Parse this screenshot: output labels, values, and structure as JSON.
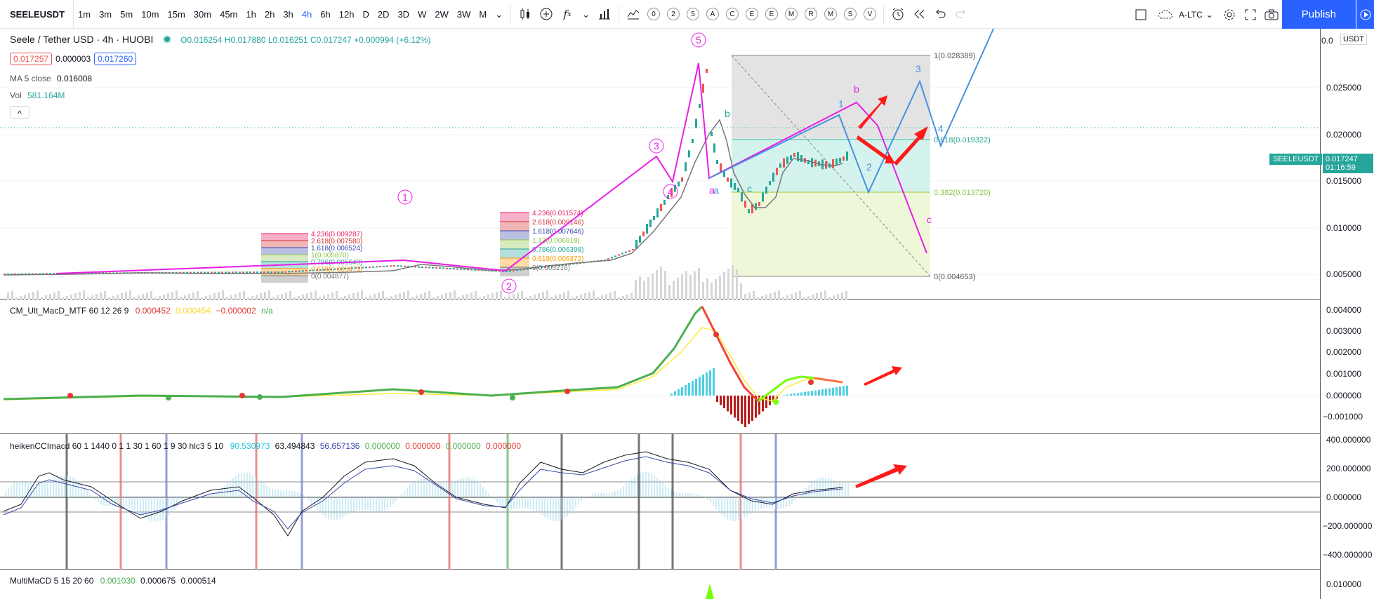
{
  "toolbar": {
    "symbol": "SEELEUSDT",
    "timeframes": [
      "1m",
      "3m",
      "5m",
      "10m",
      "15m",
      "30m",
      "45m",
      "1h",
      "2h",
      "3h",
      "4h",
      "6h",
      "12h",
      "D",
      "2D",
      "3D",
      "W",
      "2W",
      "3W",
      "M"
    ],
    "active_timeframe": "4h",
    "indicator_shortcuts": [
      "0",
      "2",
      "5",
      "A",
      "C",
      "E",
      "E",
      "M",
      "R",
      "M",
      "S",
      "V"
    ],
    "compare_label": "A-LTC",
    "publish_label": "Publish"
  },
  "legend": {
    "title": "Seele / Tether USD · 4h · HUOBI",
    "ohlc": {
      "o": "O0.016254",
      "h": "H0.017880",
      "l": "L0.016251",
      "c": "C0.017247",
      "chg": "+0.000994 (+6.12%)"
    },
    "bid": "0.017257",
    "spread": "0.000003",
    "ask": "0.017260",
    "ma_label": "MA 5 close",
    "ma_value": "0.016008",
    "vol_label": "Vol",
    "vol_value": "581.164M",
    "collapse": "^"
  },
  "price_axis": {
    "unit": "USDT",
    "labels": [
      "0.025000",
      "0.020000",
      "0.015000",
      "0.010000",
      "0.005000"
    ],
    "top_partial": "0.0",
    "price_tag": "SEELEUSDT",
    "price_value": "0.017247",
    "countdown": "01:16:59"
  },
  "fib_left": [
    "4.236(0.009287)",
    "2.618(0.007580)",
    "1.618(0.006524)",
    "1(0.005870)",
    "0.786(0.005649)",
    "0.618(0.005473)",
    "0(0.004877)"
  ],
  "fib_mid": [
    "4.236(0.011574)",
    "2.618(0.009146)",
    "1.618(0.007646)",
    "1.13(0.006918)",
    "0.786(0.006398)",
    "0.618(0.006372)",
    "0(0.005216)"
  ],
  "fib_right": {
    "top": "1(0.028389)",
    "f618": "0.618(0.019322)",
    "f382": "0.382(0.013720)",
    "bottom": "0(0.004653)"
  },
  "waves": {
    "impulse": [
      "1",
      "2",
      "3",
      "4",
      "5"
    ],
    "abc": [
      "a",
      "b",
      "c"
    ],
    "blue": [
      "1",
      "2",
      "3",
      "4",
      "b",
      "a",
      "c"
    ],
    "right_b": "b",
    "right_c": "c"
  },
  "macd": {
    "name": "CM_Ult_MacD_MTF 60 12 26 9",
    "v1": "0.000452",
    "v2": "0.000454",
    "v3": "−0.000002",
    "v4": "n/a",
    "axis": [
      "0.004000",
      "0.003000",
      "0.002000",
      "0.001000",
      "0.000000",
      "−0.001000"
    ]
  },
  "cci": {
    "name": "heikenCCImacd 60 1 1440 0 1 1 30 1 60 1 9 30 hlc3 5 10",
    "v1": "90.530973",
    "v2": "63.494843",
    "v3": "56.657136",
    "v4": "0.000000",
    "v5": "0.000000",
    "v6": "0.000000",
    "v7": "0.000000",
    "axis": [
      "400.000000",
      "200.000000",
      "0.000000",
      "−200.000000",
      "−400.000000"
    ]
  },
  "multi": {
    "name": "MultiMaCD 5 15 20 60",
    "v1": "0.001030",
    "v2": "0.000675",
    "v3": "0.000514",
    "axis": [
      "0.010000"
    ]
  },
  "colors": {
    "accent": "#2962ff",
    "magenta": "#e91ee5",
    "blue": "#4a90e2",
    "teal": "#26a69a",
    "red": "#ff1a1a"
  }
}
